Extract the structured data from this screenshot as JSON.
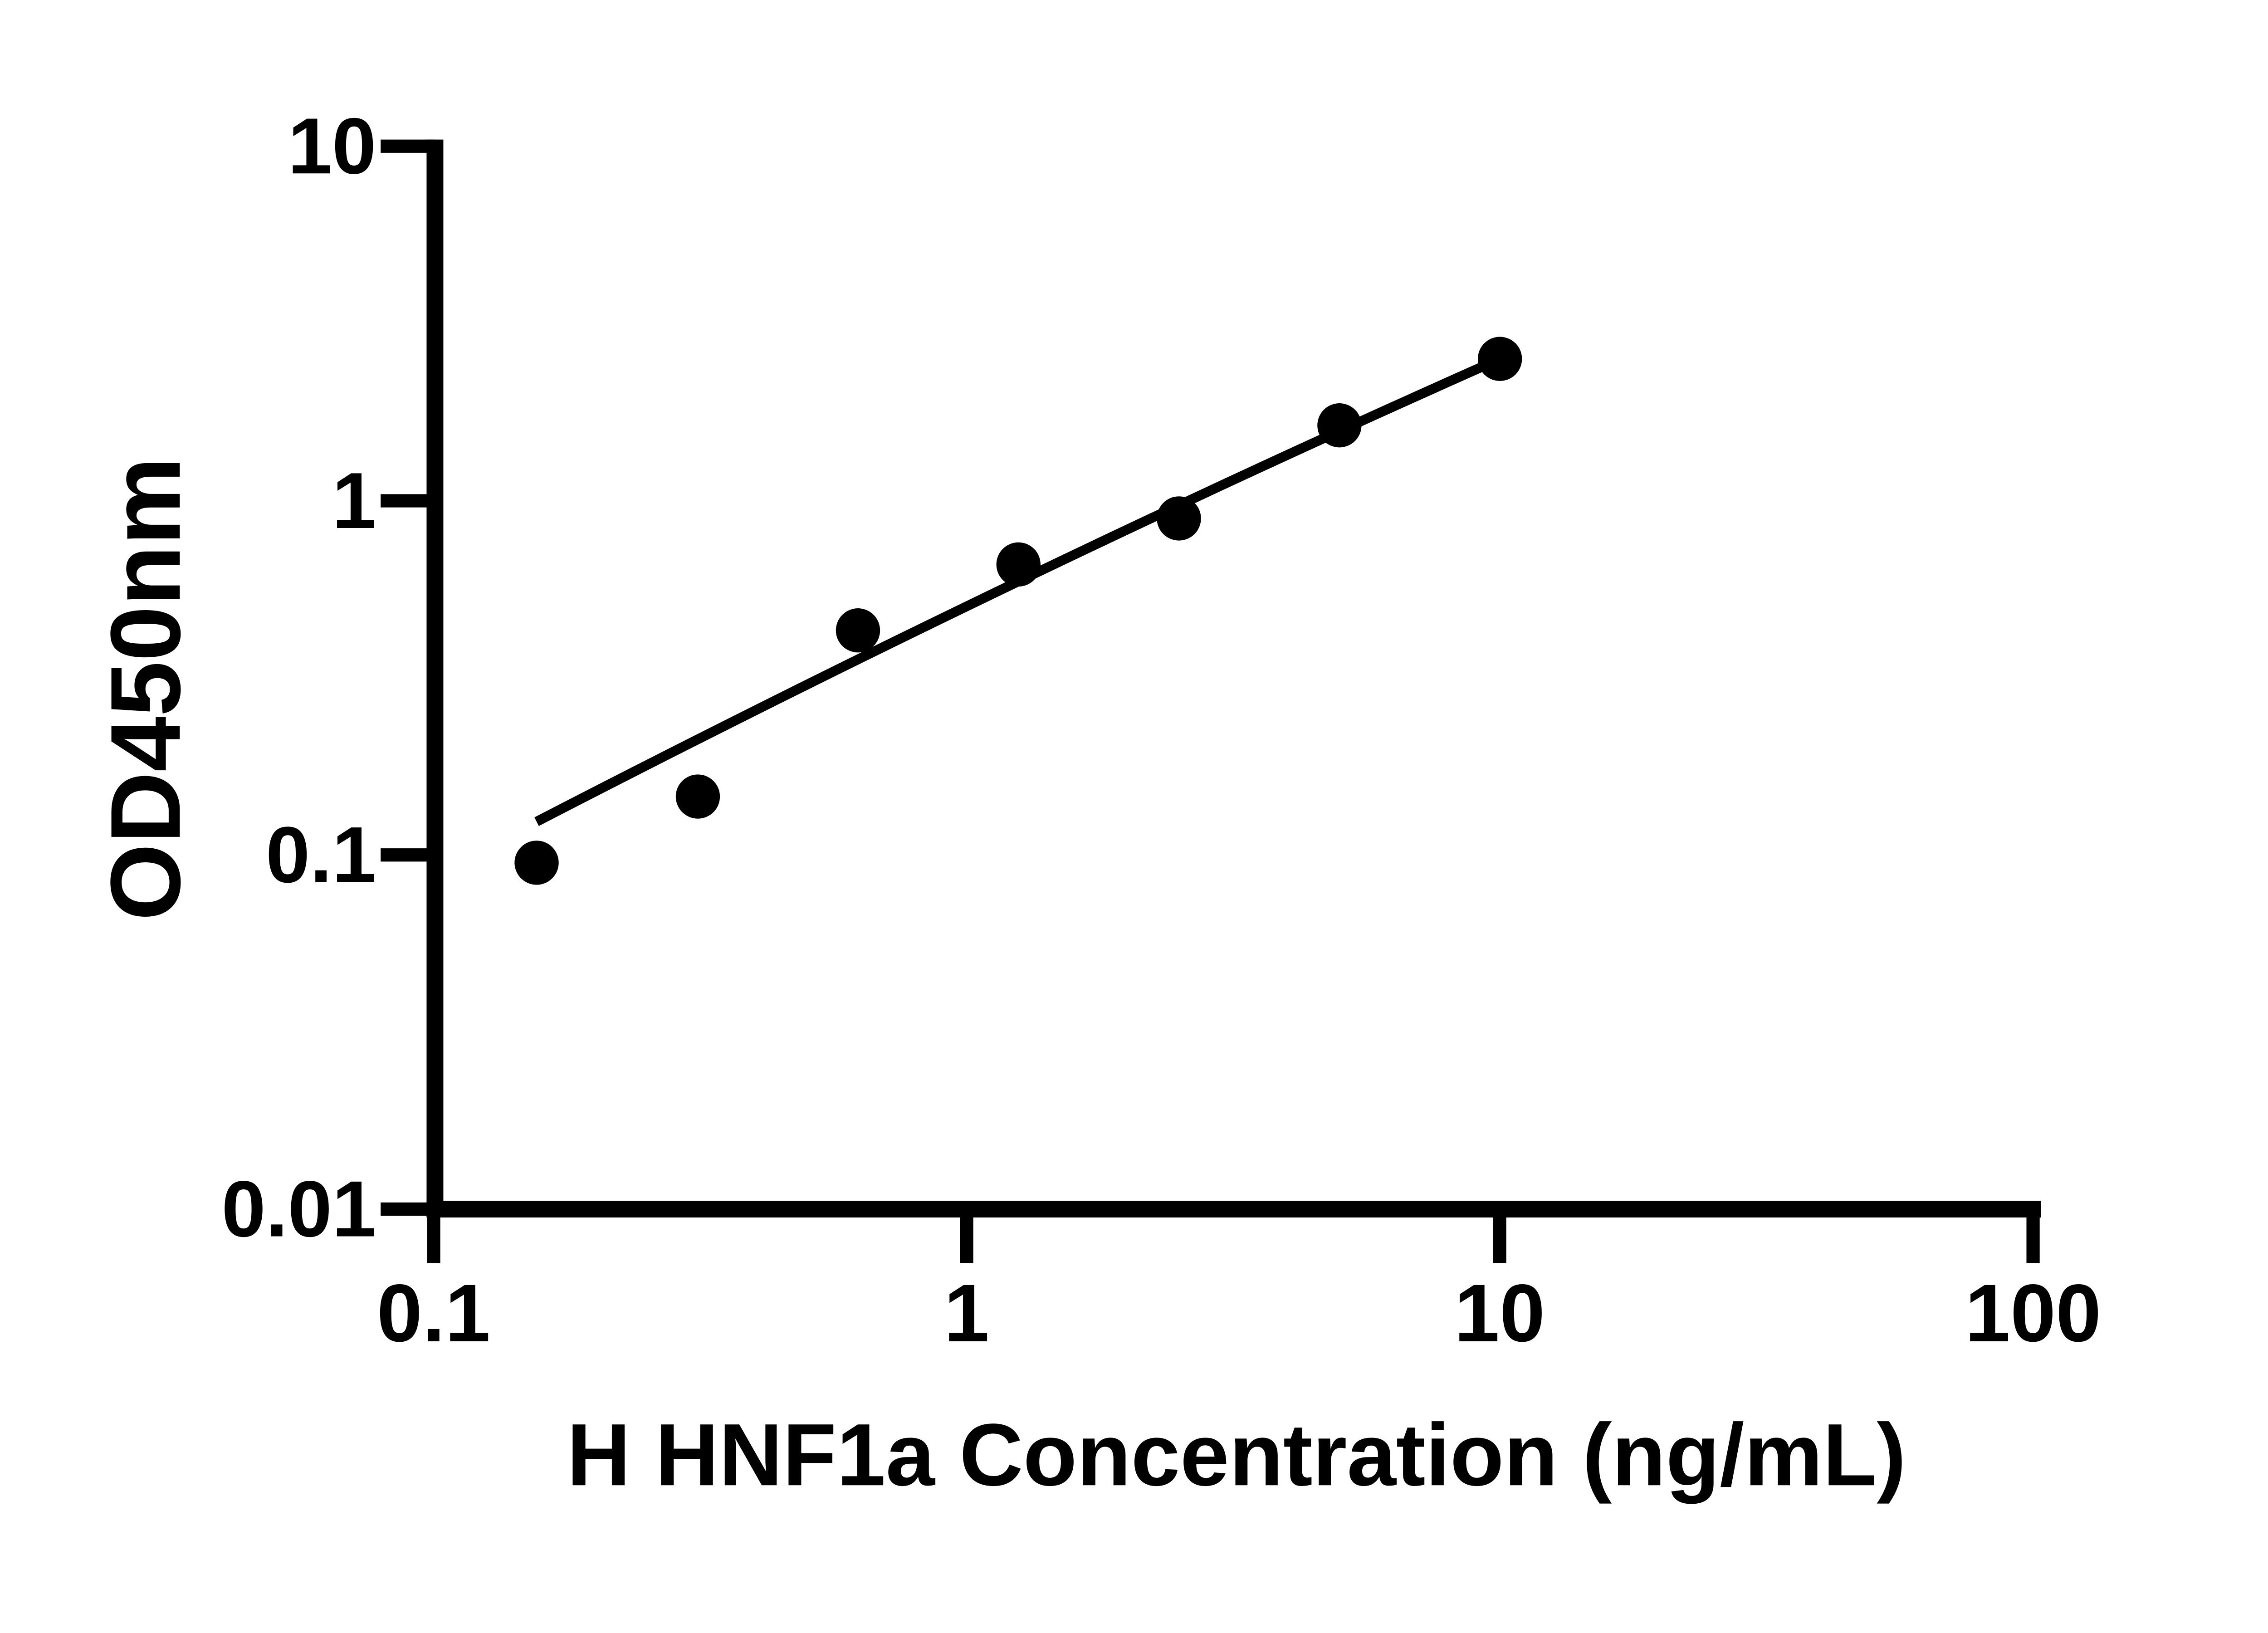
{
  "chart_data": {
    "type": "scatter",
    "title": "",
    "xlabel": "H HNF1a Concentration (ng/mL)",
    "ylabel": "OD450nm",
    "x_scale": "log",
    "y_scale": "log",
    "xlim": [
      0.1,
      100
    ],
    "ylim": [
      0.01,
      10
    ],
    "x_tick_labels": [
      "0.1",
      "1",
      "10",
      "100"
    ],
    "y_tick_labels": [
      "10",
      "1",
      "0.1",
      "0.01"
    ],
    "grid": false,
    "legend": false,
    "marker_color": "#000000",
    "line_color": "#000000",
    "points": [
      {
        "x": 0.156,
        "y": 0.095
      },
      {
        "x": 0.313,
        "y": 0.146
      },
      {
        "x": 0.625,
        "y": 0.43
      },
      {
        "x": 1.25,
        "y": 0.66
      },
      {
        "x": 2.5,
        "y": 0.89
      },
      {
        "x": 5,
        "y": 1.63
      },
      {
        "x": 10,
        "y": 2.51
      }
    ],
    "trendline": {
      "x1": 0.156,
      "y1": 0.124,
      "x2": 10,
      "y2": 2.51
    }
  }
}
